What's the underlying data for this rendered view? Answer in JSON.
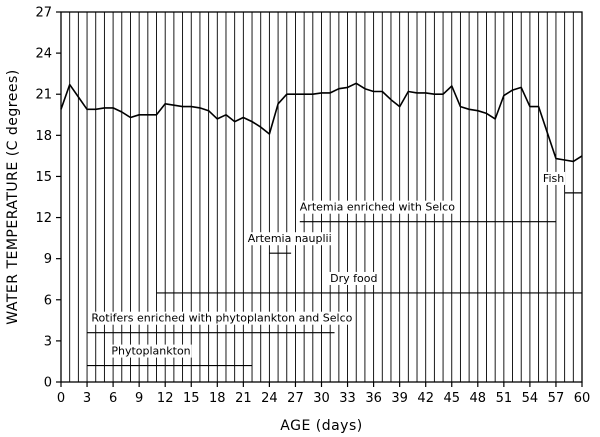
{
  "chart_data": {
    "type": "line",
    "xlabel": "AGE (days)",
    "ylabel": "WATER TEMPERATURE (C degrees)",
    "xlim": [
      0,
      60
    ],
    "ylim": [
      0,
      27
    ],
    "xticks": [
      0,
      3,
      6,
      9,
      12,
      15,
      18,
      21,
      24,
      27,
      30,
      33,
      36,
      39,
      42,
      45,
      48,
      51,
      54,
      57,
      60
    ],
    "xtick_labels": [
      "0",
      "3",
      "6",
      "9",
      "12",
      "15",
      "18",
      "21",
      "24",
      "27",
      "30",
      "33",
      "36",
      "39",
      "42",
      "45",
      "48",
      "51",
      "54",
      "57",
      "60"
    ],
    "yticks": [
      0,
      3,
      6,
      9,
      12,
      15,
      18,
      21,
      24,
      27
    ],
    "ytick_labels": [
      "0",
      "3",
      "6",
      "9",
      "12",
      "15",
      "18",
      "21",
      "24",
      "27"
    ],
    "grid": "vertical lines at each day",
    "series": [
      {
        "x": [
          0,
          1,
          2,
          3,
          4,
          5,
          6,
          7,
          8,
          9,
          10,
          11,
          12,
          13,
          14,
          15,
          16,
          17,
          18,
          19,
          20,
          21,
          22,
          23,
          24,
          25,
          26,
          27,
          28,
          29,
          30,
          31,
          32,
          33,
          34,
          35,
          36,
          37,
          38,
          39,
          40,
          41,
          42,
          43,
          44,
          45,
          46,
          47,
          48,
          49,
          50,
          51,
          52,
          53,
          54,
          55,
          56,
          57,
          58,
          59,
          60
        ],
        "y": [
          19.9,
          21.7,
          20.8,
          19.9,
          19.9,
          20.0,
          20.0,
          19.7,
          19.3,
          19.5,
          19.5,
          19.5,
          20.3,
          20.2,
          20.1,
          20.1,
          20.0,
          19.8,
          19.2,
          19.5,
          19.0,
          19.3,
          19.0,
          18.6,
          18.1,
          20.3,
          21.0,
          21.0,
          21.0,
          21.0,
          21.1,
          21.1,
          21.4,
          21.5,
          21.8,
          21.4,
          21.2,
          21.2,
          20.6,
          20.1,
          21.2,
          21.1,
          21.1,
          21.0,
          21.0,
          21.6,
          20.1,
          19.9,
          19.8,
          19.6,
          19.2,
          20.9,
          21.3,
          21.5,
          20.1,
          20.1,
          18.2,
          16.3,
          16.2,
          16.1,
          16.5
        ]
      }
    ],
    "annotations": [
      {
        "label": "Phytoplankton",
        "from": 3,
        "to": 22,
        "y": 1.2,
        "label_x": 5.8,
        "label_y": 2.0
      },
      {
        "label": "Rotifers enriched with phytoplankton and Selco",
        "from": 3,
        "to": 31.5,
        "y": 3.6,
        "label_x": 3.5,
        "label_y": 4.4
      },
      {
        "label": "Dry food",
        "from": 11,
        "to": 60,
        "y": 6.5,
        "label_x": 31,
        "label_y": 7.3
      },
      {
        "label": "Artemia nauplii",
        "from": 24,
        "to": 26.5,
        "y": 9.4,
        "label_x": 21.5,
        "label_y": 10.2
      },
      {
        "label": "Artemia enriched with Selco",
        "from": 27.5,
        "to": 57,
        "y": 11.7,
        "label_x": 27.5,
        "label_y": 12.5
      },
      {
        "label": "Fish",
        "from": 58,
        "to": 60,
        "y": 13.8,
        "label_x": 55.5,
        "label_y": 14.6
      }
    ]
  }
}
